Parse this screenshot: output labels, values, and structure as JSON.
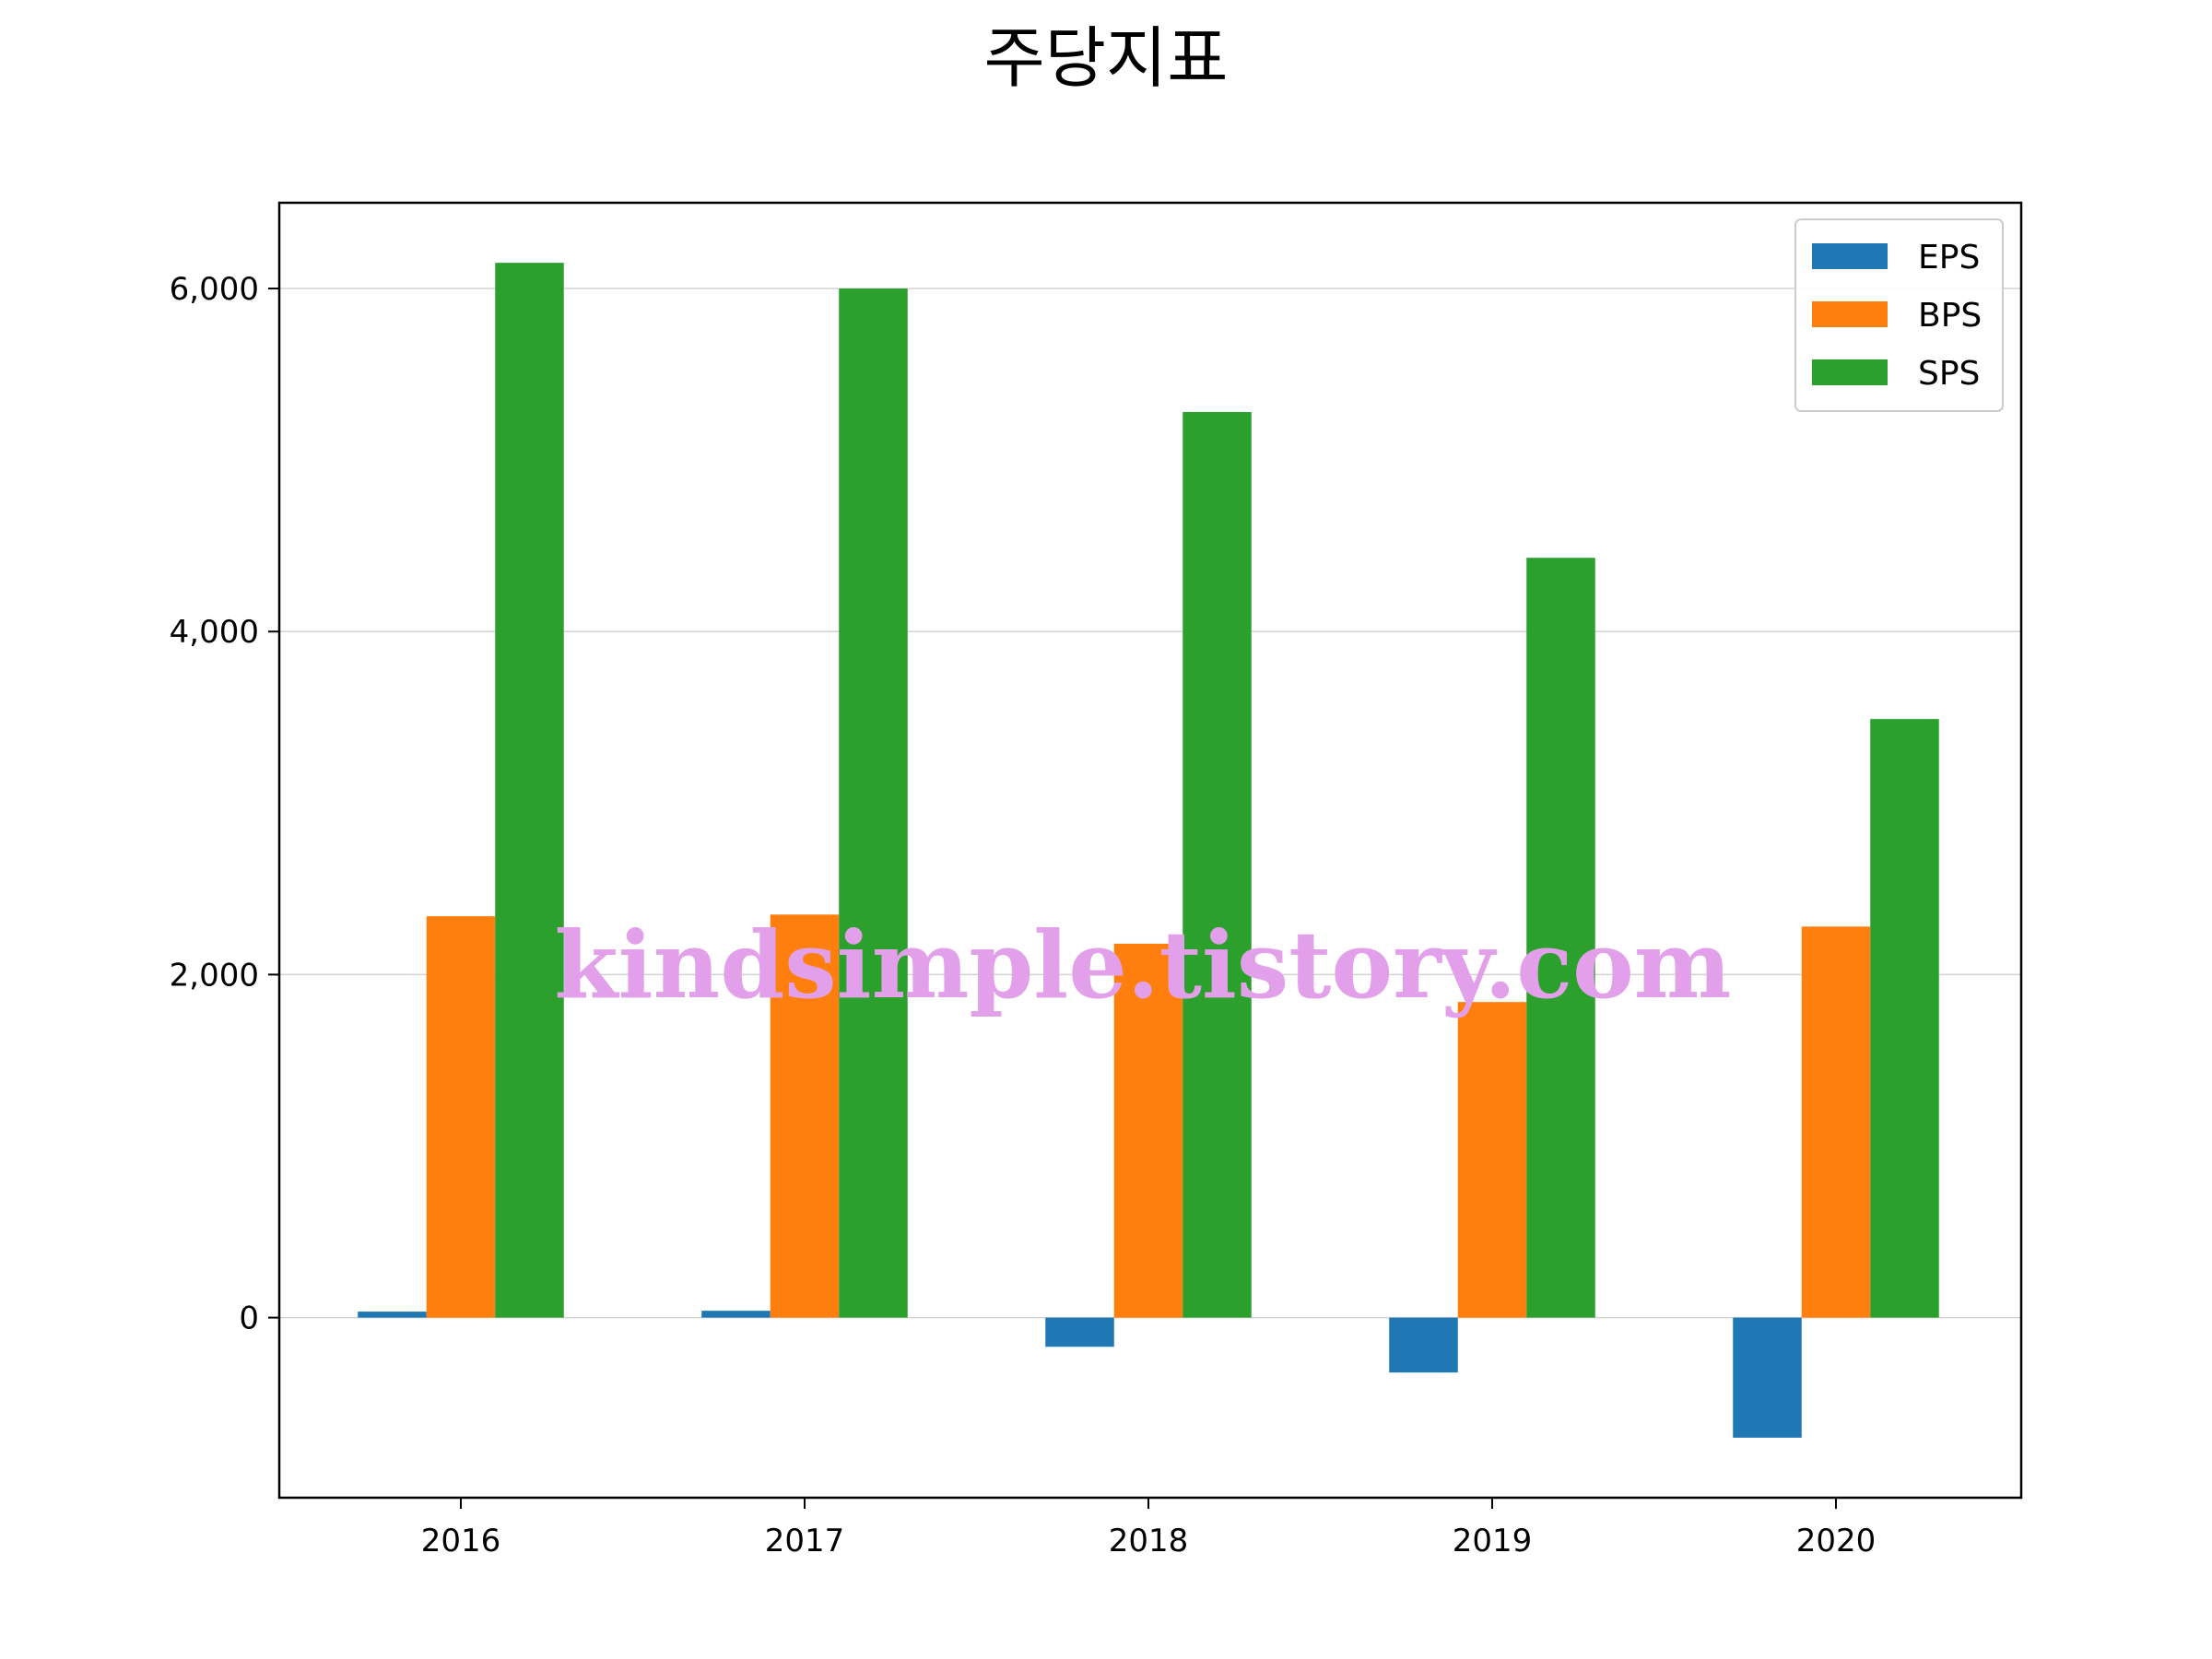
{
  "chart_data": {
    "type": "bar",
    "title": "주당지표",
    "categories": [
      "2016",
      "2017",
      "2018",
      "2019",
      "2020"
    ],
    "series": [
      {
        "name": "EPS",
        "color": "#1f77b4",
        "values": [
          35,
          40,
          -170,
          -320,
          -700
        ]
      },
      {
        "name": "BPS",
        "color": "#ff7f0e",
        "values": [
          2340,
          2350,
          2180,
          1840,
          2280
        ]
      },
      {
        "name": "SPS",
        "color": "#2ca02c",
        "values": [
          6150,
          6000,
          5280,
          4430,
          3490
        ]
      }
    ],
    "ylim": [
      -1050,
      6500
    ],
    "yticks": [
      0,
      2000,
      4000,
      6000
    ],
    "ytick_labels": [
      "0",
      "2,000",
      "4,000",
      "6,000"
    ],
    "grid": "horizontal",
    "legend_position": "top-right"
  },
  "watermark": "kindsimple.tistory.com"
}
